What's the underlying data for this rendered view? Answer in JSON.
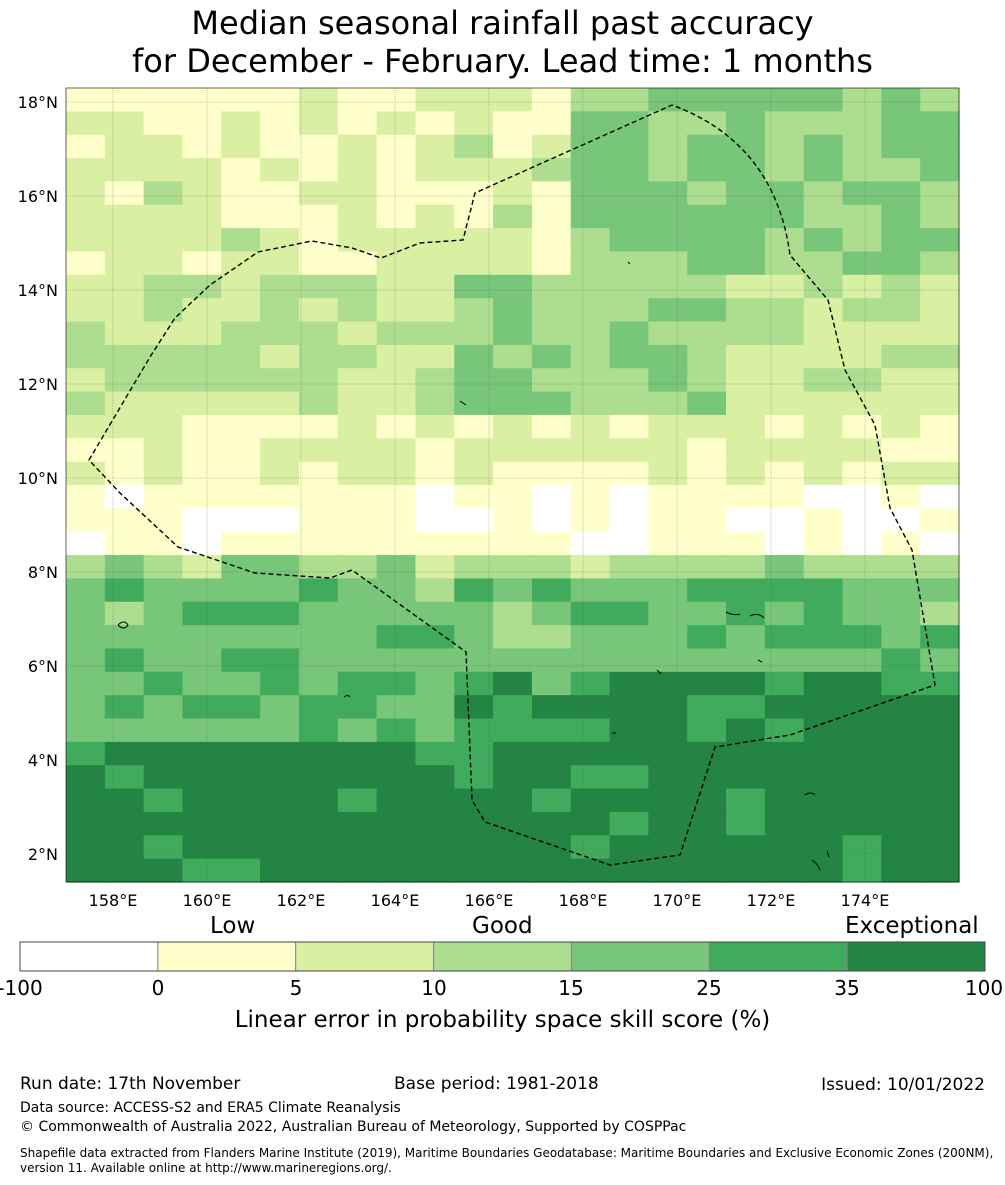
{
  "title": {
    "line1": "Median seasonal rainfall past accuracy",
    "line2": "for December - February. Lead time: 1 months"
  },
  "map": {
    "lon_range": [
      157,
      176
    ],
    "lat_range": [
      1.4,
      18.3
    ],
    "lon_ticks": [
      "158°E",
      "160°E",
      "162°E",
      "164°E",
      "166°E",
      "168°E",
      "170°E",
      "172°E",
      "174°E"
    ],
    "lat_ticks": [
      "2°N",
      "4°N",
      "6°N",
      "8°N",
      "10°N",
      "12°N",
      "14°N",
      "16°N",
      "18°N"
    ],
    "grid": true,
    "eez_boundary": "dashed",
    "skill_categories": [
      0,
      1,
      2,
      3,
      4,
      5,
      6
    ],
    "colors": [
      "#ffffff",
      "#ffffcc",
      "#d9f0a3",
      "#addd8e",
      "#78c679",
      "#41ab5d",
      "#238443"
    ]
  },
  "colorbar": {
    "words": [
      "Low",
      "Good",
      "Exceptional"
    ],
    "ticks": [
      "-100",
      "0",
      "5",
      "10",
      "15",
      "25",
      "35",
      "100"
    ],
    "label": "Linear error in probability space skill score (%)"
  },
  "footer": {
    "run_date": "Run date: 17th November",
    "base_period": "Base period: 1981-2018",
    "issued": "Issued: 10/01/2022",
    "data_source": "Data source: ACCESS-S2 and ERA5 Climate Reanalysis",
    "copyright": "© Commonwealth of Australia 2022, Australian Bureau of Meteorology, Supported by COSPPac",
    "shapefile": "Shapefile data extracted from Flanders Marine Institute (2019), Maritime Boundaries Geodatabase: Maritime Boundaries and Exclusive Economic Zones (200NM), version 11. Available online at http://www.marineregions.org/."
  }
}
